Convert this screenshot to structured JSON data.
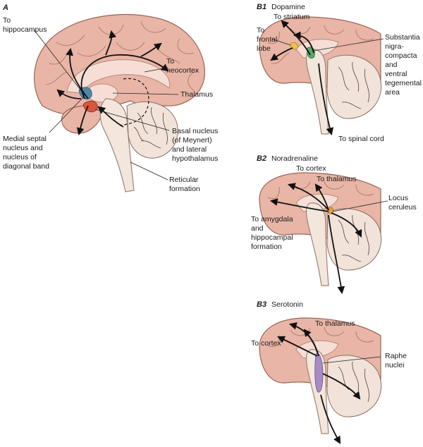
{
  "panel_a": {
    "letter": "A",
    "labels": {
      "hippocampus": [
        "To",
        "hippocampus"
      ],
      "neocortex": [
        "To",
        "neocortex"
      ],
      "thalamus": "Thalamus",
      "medial_septal": [
        "Medial septal",
        "nucleus and",
        "nucleus of",
        "diagonal band"
      ],
      "basal_nucleus": [
        "Basal nucleus",
        "(of Meynert)",
        "and lateral",
        "hypothalamus"
      ],
      "reticular": [
        "Reticular",
        "formation"
      ]
    }
  },
  "panel_b1": {
    "letter": "B1",
    "title": "Dopamine",
    "labels": {
      "striatum": "To striatum",
      "frontal": [
        "To",
        "frontal",
        "lobe"
      ],
      "substantia": [
        "Substantia",
        "nigra-",
        "compacta",
        "and",
        "ventral",
        "tegemental",
        "area"
      ],
      "spinal": "To spinal cord"
    }
  },
  "panel_b2": {
    "letter": "B2",
    "title": "Noradrenaline",
    "labels": {
      "cortex": "To cortex",
      "thalamus": "To thalamus",
      "locus": [
        "Locus",
        "ceruleus"
      ],
      "amygdala": [
        "To amygdala",
        "and",
        "hippocampal",
        "formation"
      ]
    }
  },
  "panel_b3": {
    "letter": "B3",
    "title": "Serotonin",
    "labels": {
      "thalamus": "To thalamus",
      "cortex": "To cortex",
      "raphe": [
        "Raphe",
        "nuclei"
      ]
    }
  },
  "colors": {
    "cortex_fill": "#e9b5a6",
    "stem_fill": "#f3e6dc",
    "septal_nucleus": "#4f87a8",
    "basal_nucleus": "#d9553b",
    "substantia_nigra": "#5aa86a",
    "ventral_tegmental": "#e8c24a",
    "locus_ceruleus": "#e8a23a",
    "raphe_nuclei": "#a88ac4",
    "pathway": "#111111"
  }
}
